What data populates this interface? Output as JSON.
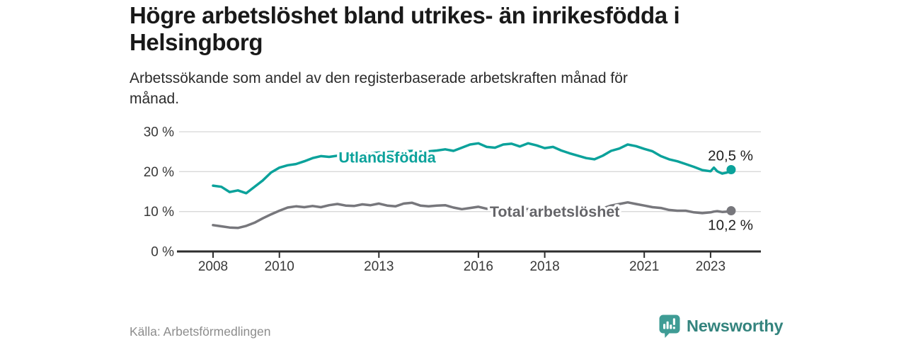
{
  "header": {
    "title_lines": [
      "Högre arbetslöshet bland utrikes- än inrikesfödda i",
      "Helsingborg"
    ],
    "subtitle_lines": [
      "Arbetssökande som andel av den registerbaserade arbetskraften månad för",
      "månad."
    ]
  },
  "footer": {
    "source": "Källa: Arbetsförmedlingen",
    "brand": {
      "name": "Newsworthy",
      "icon": "bar-chart-bubble-icon",
      "icon_color": "#3f9c95",
      "text_color": "#34847e"
    }
  },
  "colors": {
    "accent_teal": "#0ba29b",
    "line_gray": "#77777c",
    "gridline": "#d8d8d8",
    "axis": "#2e2e2e",
    "axis_label": "#383838",
    "value_label": "#1f1f1f"
  },
  "chart_data": {
    "type": "line",
    "title": "Högre arbetslöshet bland utrikes- än inrikesfödda i Helsingborg",
    "subtitle": "Arbetssökande som andel av den registerbaserade arbetskraften månad för månad.",
    "xlabel": "",
    "ylabel": "%",
    "ylim": [
      0,
      30
    ],
    "xlim": [
      2007.5,
      2024.5
    ],
    "grid": "horizontal",
    "legend_position": "inline-on-line",
    "x": [
      2008,
      2008.25,
      2008.5,
      2008.75,
      2009,
      2009.25,
      2009.5,
      2009.75,
      2010,
      2010.25,
      2010.5,
      2010.75,
      2011,
      2011.25,
      2011.5,
      2011.75,
      2012,
      2012.25,
      2012.5,
      2012.75,
      2013,
      2013.25,
      2013.5,
      2013.75,
      2014,
      2014.25,
      2014.5,
      2014.75,
      2015,
      2015.25,
      2015.5,
      2015.75,
      2016,
      2016.25,
      2016.5,
      2016.75,
      2017,
      2017.25,
      2017.5,
      2017.75,
      2018,
      2018.25,
      2018.5,
      2018.75,
      2019,
      2019.25,
      2019.5,
      2019.75,
      2020,
      2020.25,
      2020.5,
      2020.75,
      2021,
      2021.25,
      2021.5,
      2021.75,
      2022,
      2022.25,
      2022.5,
      2022.75,
      2023,
      2023.1,
      2023.2,
      2023.35,
      2023.5,
      2023.62
    ],
    "series": [
      {
        "id": "utlandsfodda",
        "name": "Utlandsfödda",
        "color": "#0ba29b",
        "label_color": "#0ba29b",
        "end_label": "20,5 %",
        "end_label_pos": "above",
        "final_value": 20.5,
        "label_anchor": {
          "year": 2013.25,
          "value": 22.3
        },
        "values": [
          16.5,
          16.2,
          14.9,
          15.3,
          14.6,
          16.2,
          17.8,
          19.8,
          21.0,
          21.6,
          21.9,
          22.6,
          23.4,
          23.9,
          23.7,
          24.0,
          24.2,
          24.4,
          24.5,
          24.6,
          24.8,
          24.9,
          25.0,
          25.1,
          25.2,
          25.0,
          25.1,
          25.3,
          25.6,
          25.2,
          26.0,
          26.8,
          27.1,
          26.2,
          26.0,
          26.8,
          27.0,
          26.3,
          27.1,
          26.6,
          25.9,
          26.2,
          25.3,
          24.6,
          24.0,
          23.4,
          23.1,
          24.0,
          25.2,
          25.8,
          26.8,
          26.4,
          25.7,
          25.1,
          23.9,
          23.1,
          22.6,
          21.9,
          21.2,
          20.4,
          20.1,
          21.0,
          20.1,
          19.5,
          19.8,
          20.5
        ]
      },
      {
        "id": "total",
        "name": "Total arbetslöshet",
        "color": "#77777c",
        "label_color": "#656569",
        "end_label": "10,2 %",
        "end_label_pos": "below",
        "final_value": 10.2,
        "label_anchor": {
          "year": 2018.3,
          "value": 8.7
        },
        "values": [
          6.6,
          6.3,
          6.0,
          5.9,
          6.4,
          7.2,
          8.3,
          9.3,
          10.2,
          11.0,
          11.3,
          11.1,
          11.4,
          11.1,
          11.6,
          11.9,
          11.5,
          11.4,
          11.8,
          11.6,
          12.0,
          11.5,
          11.3,
          12.0,
          12.2,
          11.5,
          11.3,
          11.5,
          11.6,
          11.0,
          10.6,
          10.9,
          11.2,
          10.7,
          11.0,
          10.9,
          10.8,
          10.7,
          10.6,
          10.5,
          10.4,
          10.3,
          10.3,
          10.2,
          10.2,
          10.3,
          10.4,
          10.8,
          11.5,
          11.9,
          12.3,
          11.9,
          11.5,
          11.1,
          10.9,
          10.4,
          10.2,
          10.2,
          9.8,
          9.6,
          9.8,
          10.0,
          10.1,
          9.9,
          10.0,
          10.2
        ]
      }
    ],
    "yticks": [
      {
        "value": 0,
        "label": "0 %"
      },
      {
        "value": 10,
        "label": "10 %"
      },
      {
        "value": 20,
        "label": "20 %"
      },
      {
        "value": 30,
        "label": "30 %"
      }
    ],
    "xticks": [
      {
        "value": 2008,
        "label": "2008"
      },
      {
        "value": 2010,
        "label": "2010"
      },
      {
        "value": 2013,
        "label": "2013"
      },
      {
        "value": 2016,
        "label": "2016"
      },
      {
        "value": 2018,
        "label": "2018"
      },
      {
        "value": 2021,
        "label": "2021"
      },
      {
        "value": 2023,
        "label": "2023"
      }
    ]
  }
}
